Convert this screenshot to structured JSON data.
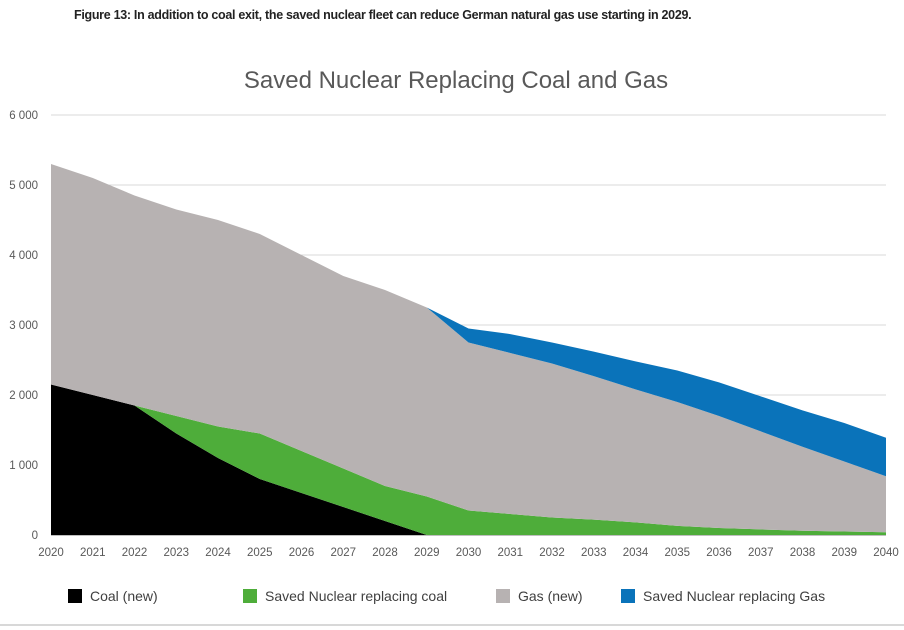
{
  "caption": "Figure 13: In addition to coal exit, the saved nuclear fleet can reduce German natural gas use starting in 2029.",
  "chart_data": {
    "type": "area",
    "stacked": true,
    "title": "Saved Nuclear Replacing Coal and Gas",
    "xlabel": "",
    "ylabel": "",
    "x": [
      2020,
      2021,
      2022,
      2023,
      2024,
      2025,
      2026,
      2027,
      2028,
      2029,
      2030,
      2031,
      2032,
      2033,
      2034,
      2035,
      2036,
      2037,
      2038,
      2039,
      2040
    ],
    "x_tick_labels": [
      "2020",
      "2021",
      "2022",
      "2023",
      "2024",
      "2025",
      "2026",
      "2027",
      "2028",
      "2029",
      "2030",
      "2031",
      "2032",
      "2033",
      "2034",
      "2035",
      "2036",
      "2037",
      "2038",
      "2039",
      "2040"
    ],
    "ylim": [
      0,
      6000
    ],
    "y_ticks": [
      0,
      1000,
      2000,
      3000,
      4000,
      5000,
      6000
    ],
    "y_tick_labels": [
      "0",
      "1 000",
      "2 000",
      "3 000",
      "4 000",
      "5 000",
      "6 000"
    ],
    "grid": true,
    "legend_position": "bottom",
    "series": [
      {
        "name": "Coal (new)",
        "color": "#000000",
        "values": [
          2150,
          2000,
          1850,
          1450,
          1100,
          800,
          600,
          400,
          200,
          0,
          0,
          0,
          0,
          0,
          0,
          0,
          0,
          0,
          0,
          0,
          0
        ]
      },
      {
        "name": "Saved Nuclear replacing coal",
        "color": "#4ead3a",
        "values": [
          0,
          0,
          0,
          250,
          450,
          650,
          600,
          550,
          500,
          550,
          350,
          300,
          250,
          220,
          180,
          130,
          100,
          80,
          60,
          50,
          40
        ]
      },
      {
        "name": "Gas (new)",
        "color": "#b7b2b2",
        "values": [
          3150,
          3100,
          3000,
          2950,
          2950,
          2850,
          2800,
          2750,
          2800,
          2700,
          2400,
          2300,
          2200,
          2050,
          1900,
          1770,
          1600,
          1400,
          1200,
          1000,
          800
        ]
      },
      {
        "name": "Saved Nuclear replacing Gas",
        "color": "#0a73ba",
        "values": [
          0,
          0,
          0,
          0,
          0,
          0,
          0,
          0,
          0,
          0,
          200,
          270,
          300,
          350,
          400,
          450,
          480,
          500,
          520,
          550,
          550
        ]
      }
    ]
  }
}
